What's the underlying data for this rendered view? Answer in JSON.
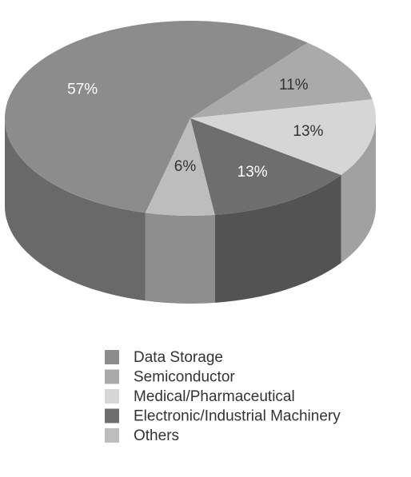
{
  "chart_data": {
    "type": "pie",
    "categories": [
      "Data Storage",
      "Semiconductor",
      "Medical/Pharmaceutical",
      "Electronic/Industrial Machinery",
      "Others"
    ],
    "values": [
      57,
      11,
      13,
      13,
      6
    ],
    "value_labels": [
      "57%",
      "11%",
      "13%",
      "13%",
      "6%"
    ],
    "colors": [
      "#8c8c8c",
      "#aaaaaa",
      "#d6d6d6",
      "#6e6e6e",
      "#bdbdbd"
    ],
    "legend": "bottom"
  }
}
